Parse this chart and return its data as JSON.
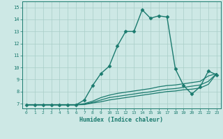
{
  "xlabel": "Humidex (Indice chaleur)",
  "background_color": "#cde8e5",
  "grid_color": "#a8cec8",
  "line_color": "#1a7a6e",
  "xlim": [
    -0.5,
    23.5
  ],
  "ylim": [
    6.6,
    15.5
  ],
  "yticks": [
    7,
    8,
    9,
    10,
    11,
    12,
    13,
    14,
    15
  ],
  "xticks": [
    0,
    1,
    2,
    3,
    4,
    5,
    6,
    7,
    8,
    9,
    10,
    11,
    12,
    13,
    14,
    15,
    16,
    17,
    18,
    19,
    20,
    21,
    22,
    23
  ],
  "series": [
    {
      "x": [
        0,
        1,
        2,
        3,
        4,
        5,
        6,
        7,
        8,
        9,
        10,
        11,
        12,
        13,
        14,
        15,
        16,
        17,
        18,
        19,
        20,
        21,
        22,
        23
      ],
      "y": [
        6.9,
        6.9,
        6.9,
        6.9,
        6.9,
        6.9,
        6.9,
        7.3,
        8.5,
        9.5,
        10.1,
        11.8,
        13.0,
        13.0,
        14.8,
        14.1,
        14.3,
        14.2,
        9.9,
        8.5,
        7.8,
        8.4,
        9.7,
        9.4
      ],
      "marker": "D",
      "markersize": 2.5,
      "linewidth": 1.0
    },
    {
      "x": [
        0,
        1,
        2,
        3,
        4,
        5,
        6,
        7,
        8,
        9,
        10,
        11,
        12,
        13,
        14,
        15,
        16,
        17,
        18,
        19,
        20,
        21,
        22,
        23
      ],
      "y": [
        6.9,
        6.9,
        6.9,
        6.9,
        6.9,
        6.9,
        6.9,
        7.0,
        7.2,
        7.5,
        7.7,
        7.85,
        7.95,
        8.05,
        8.15,
        8.25,
        8.4,
        8.5,
        8.55,
        8.65,
        8.75,
        8.85,
        9.3,
        9.5
      ],
      "marker": null,
      "markersize": 0,
      "linewidth": 0.9
    },
    {
      "x": [
        0,
        1,
        2,
        3,
        4,
        5,
        6,
        7,
        8,
        9,
        10,
        11,
        12,
        13,
        14,
        15,
        16,
        17,
        18,
        19,
        20,
        21,
        22,
        23
      ],
      "y": [
        6.9,
        6.9,
        6.9,
        6.9,
        6.9,
        6.9,
        6.9,
        6.95,
        7.1,
        7.3,
        7.5,
        7.6,
        7.7,
        7.8,
        7.9,
        7.98,
        8.1,
        8.2,
        8.25,
        8.35,
        8.45,
        8.55,
        8.85,
        9.5
      ],
      "marker": null,
      "markersize": 0,
      "linewidth": 0.9
    },
    {
      "x": [
        0,
        1,
        2,
        3,
        4,
        5,
        6,
        7,
        8,
        9,
        10,
        11,
        12,
        13,
        14,
        15,
        16,
        17,
        18,
        19,
        20,
        21,
        22,
        23
      ],
      "y": [
        6.9,
        6.9,
        6.9,
        6.9,
        6.9,
        6.9,
        6.9,
        6.92,
        7.05,
        7.15,
        7.3,
        7.4,
        7.5,
        7.6,
        7.7,
        7.8,
        7.9,
        8.0,
        8.05,
        8.15,
        8.2,
        8.3,
        8.6,
        9.5
      ],
      "marker": null,
      "markersize": 0,
      "linewidth": 0.9
    }
  ]
}
